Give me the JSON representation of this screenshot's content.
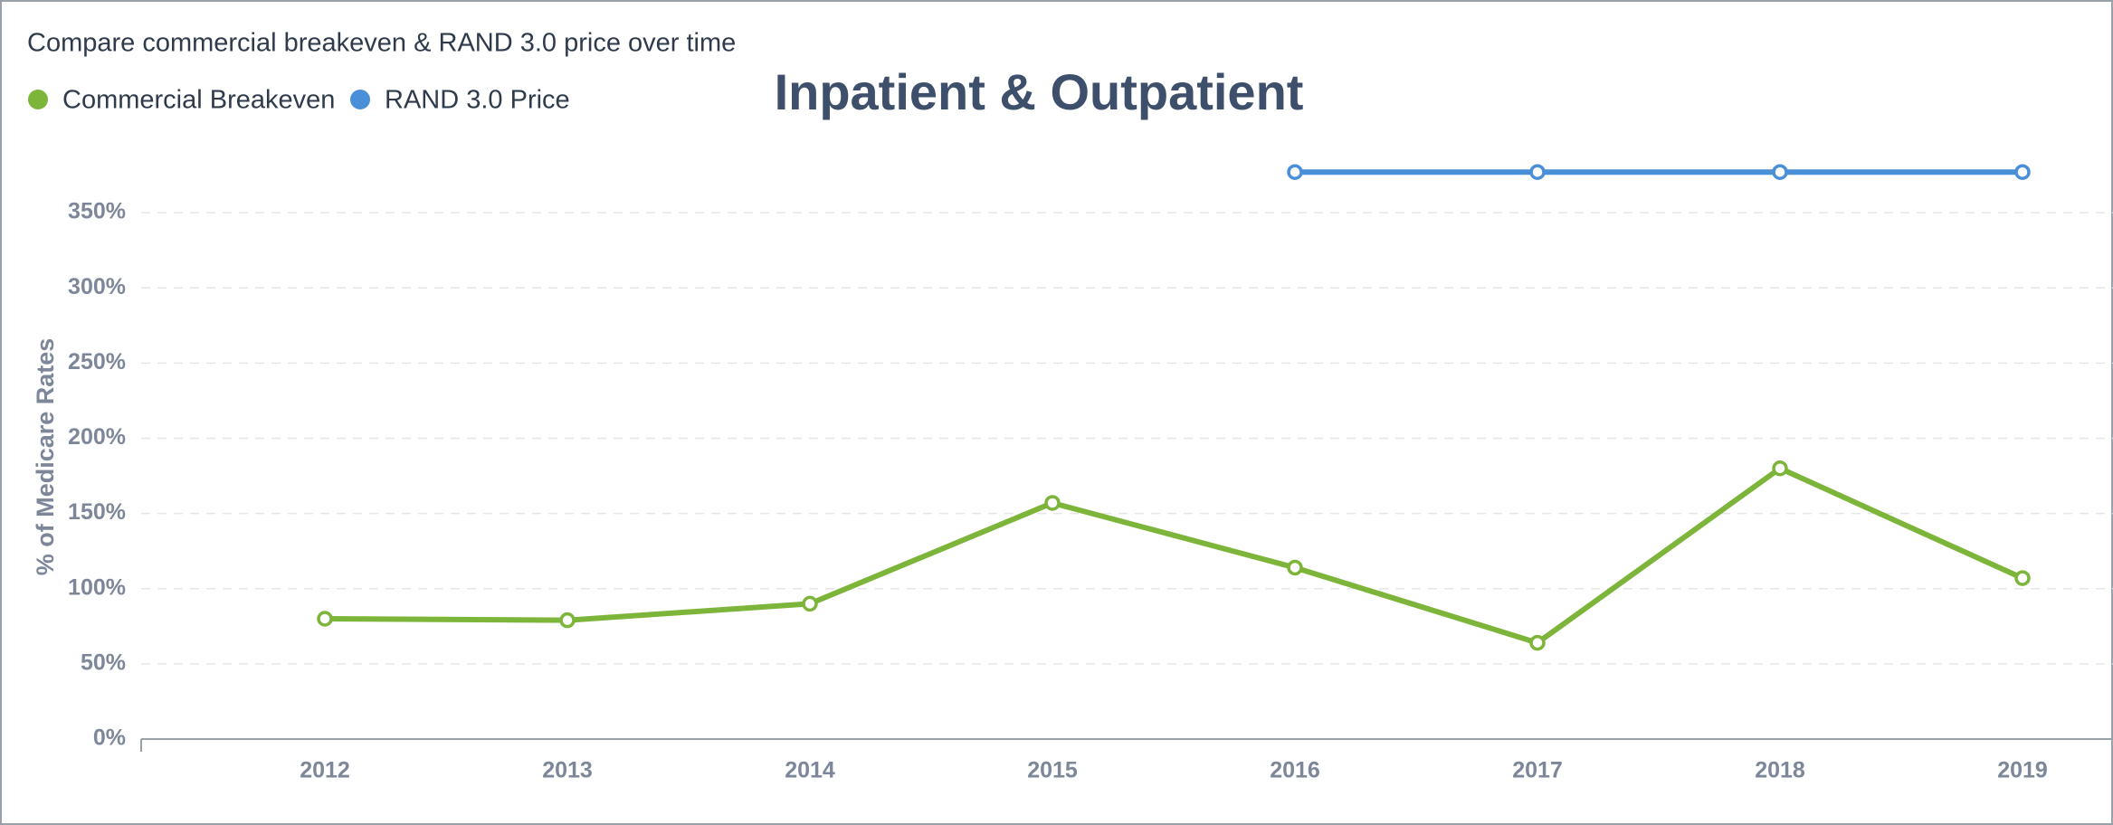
{
  "chart_data": {
    "type": "line",
    "subtitle": "Compare commercial breakeven & RAND 3.0 price over time",
    "title": "Inpatient & Outpatient",
    "y_label": "% of Medicare Rates",
    "categories": [
      "2012",
      "2013",
      "2014",
      "2015",
      "2016",
      "2017",
      "2018",
      "2019"
    ],
    "series": [
      {
        "name": "Commercial Breakeven",
        "color": "#7db53a",
        "values": [
          80,
          79,
          90,
          157,
          114,
          64,
          180,
          107
        ]
      },
      {
        "name": "RAND 3.0 Price",
        "color": "#4a90d9",
        "values": [
          null,
          null,
          null,
          null,
          377,
          377,
          377,
          377
        ]
      }
    ],
    "ylim": [
      0,
      400
    ],
    "yticks": [
      {
        "value": 0,
        "label": "0%"
      },
      {
        "value": 50,
        "label": "50%"
      },
      {
        "value": 100,
        "label": "100%"
      },
      {
        "value": 150,
        "label": "150%"
      },
      {
        "value": 200,
        "label": "200%"
      },
      {
        "value": 250,
        "label": "250%"
      },
      {
        "value": 300,
        "label": "300%"
      },
      {
        "value": 350,
        "label": "350%"
      }
    ],
    "grid": true
  }
}
